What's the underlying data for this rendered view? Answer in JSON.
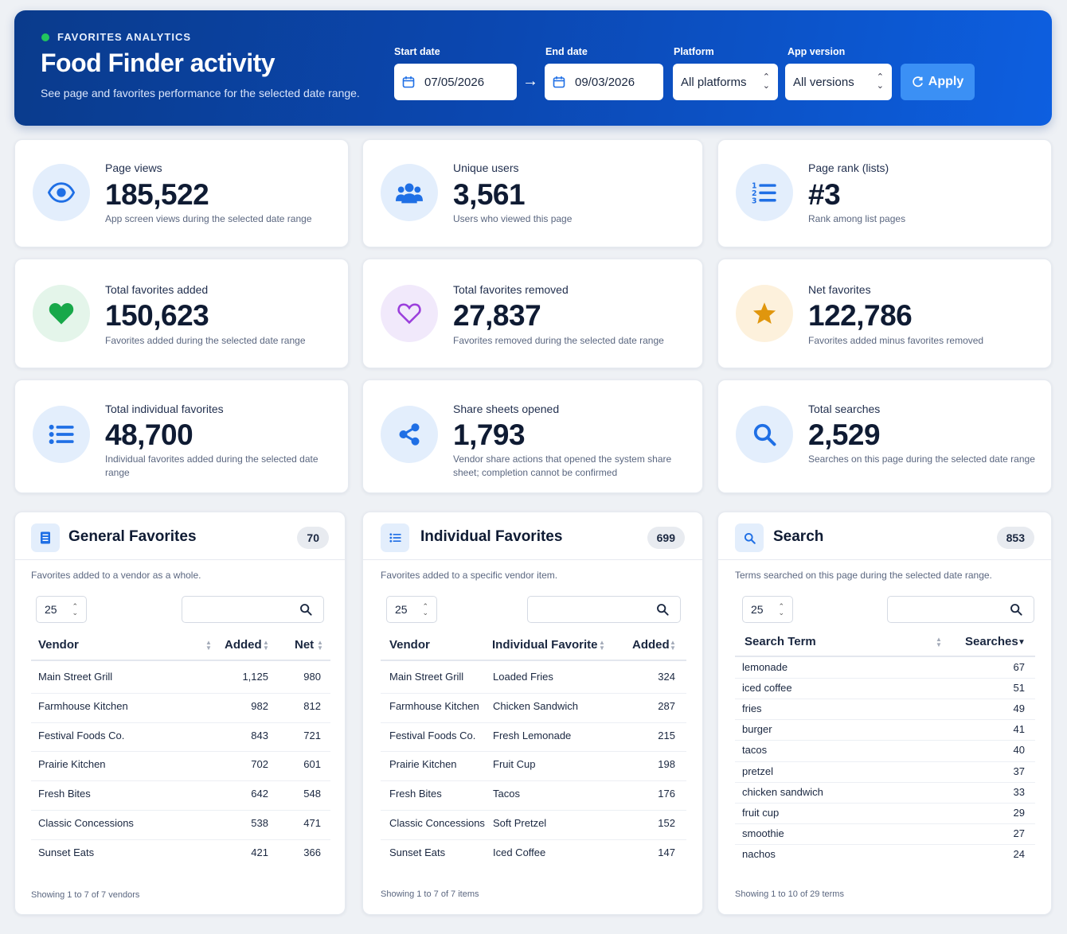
{
  "header": {
    "eyebrow": "FAVORITES ANALYTICS",
    "title": "Food Finder activity",
    "subtitle": "See page and favorites performance for the selected date range.",
    "start_label": "Start date",
    "start_value": "07/05/2026",
    "end_label": "End date",
    "end_value": "09/03/2026",
    "platform_label": "Platform",
    "platform_value": "All platforms",
    "version_label": "App version",
    "version_value": "All versions",
    "apply_label": "Apply",
    "arrow": "→"
  },
  "metrics": [
    {
      "label": "Page views",
      "value": "185,522",
      "desc": "App screen views during the selected date range",
      "icon": "eye-icon"
    },
    {
      "label": "Unique users",
      "value": "3,561",
      "desc": "Users who viewed this page",
      "icon": "users-icon"
    },
    {
      "label": "Page rank (lists)",
      "value": "#3",
      "desc": "Rank among list pages",
      "icon": "ordered-list-icon"
    },
    {
      "label": "Total favorites added",
      "value": "150,623",
      "desc": "Favorites added during the selected date range",
      "icon": "heart-icon"
    },
    {
      "label": "Total favorites removed",
      "value": "27,837",
      "desc": "Favorites removed during the selected date range",
      "icon": "heart-outline-icon"
    },
    {
      "label": "Net favorites",
      "value": "122,786",
      "desc": "Favorites added minus favorites removed",
      "icon": "star-icon"
    },
    {
      "label": "Total individual favorites",
      "value": "48,700",
      "desc": "Individual favorites added during the selected date range",
      "icon": "list-icon"
    },
    {
      "label": "Share sheets opened",
      "value": "1,793",
      "desc": "Vendor share actions that opened the system share sheet; completion cannot be confirmed",
      "icon": "share-icon"
    },
    {
      "label": "Total searches",
      "value": "2,529",
      "desc": "Searches on this page during the selected date range",
      "icon": "search-icon"
    }
  ],
  "general": {
    "title": "General Favorites",
    "count": "70",
    "desc": "Favorites added to a vendor as a whole.",
    "page_size": "25",
    "columns": [
      "Vendor",
      "Added",
      "Net"
    ],
    "rows": [
      [
        "Main Street Grill",
        "1,125",
        "980"
      ],
      [
        "Farmhouse Kitchen",
        "982",
        "812"
      ],
      [
        "Festival Foods Co.",
        "843",
        "721"
      ],
      [
        "Prairie Kitchen",
        "702",
        "601"
      ],
      [
        "Fresh Bites",
        "642",
        "548"
      ],
      [
        "Classic Concessions",
        "538",
        "471"
      ],
      [
        "Sunset Eats",
        "421",
        "366"
      ]
    ],
    "footer": "Showing 1 to 7 of 7 vendors"
  },
  "individual": {
    "title": "Individual Favorites",
    "count": "699",
    "desc": "Favorites added to a specific vendor item.",
    "page_size": "25",
    "columns": [
      "Vendor",
      "Individual Favorite",
      "Added"
    ],
    "rows": [
      [
        "Main Street Grill",
        "Loaded Fries",
        "324"
      ],
      [
        "Farmhouse Kitchen",
        "Chicken Sandwich",
        "287"
      ],
      [
        "Festival Foods Co.",
        "Fresh Lemonade",
        "215"
      ],
      [
        "Prairie Kitchen",
        "Fruit Cup",
        "198"
      ],
      [
        "Fresh Bites",
        "Tacos",
        "176"
      ],
      [
        "Classic Concessions",
        "Soft Pretzel",
        "152"
      ],
      [
        "Sunset Eats",
        "Iced Coffee",
        "147"
      ]
    ],
    "footer": "Showing 1 to 7 of 7 items"
  },
  "search": {
    "title": "Search",
    "count": "853",
    "desc": "Terms searched on this page during the selected date range.",
    "page_size": "25",
    "columns": [
      "Search Term",
      "Searches"
    ],
    "rows": [
      [
        "lemonade",
        "67"
      ],
      [
        "iced coffee",
        "51"
      ],
      [
        "fries",
        "49"
      ],
      [
        "burger",
        "41"
      ],
      [
        "tacos",
        "40"
      ],
      [
        "pretzel",
        "37"
      ],
      [
        "chicken sandwich",
        "33"
      ],
      [
        "fruit cup",
        "29"
      ],
      [
        "smoothie",
        "27"
      ],
      [
        "nachos",
        "24"
      ]
    ],
    "footer": "Showing 1 to 10 of 29 terms"
  }
}
